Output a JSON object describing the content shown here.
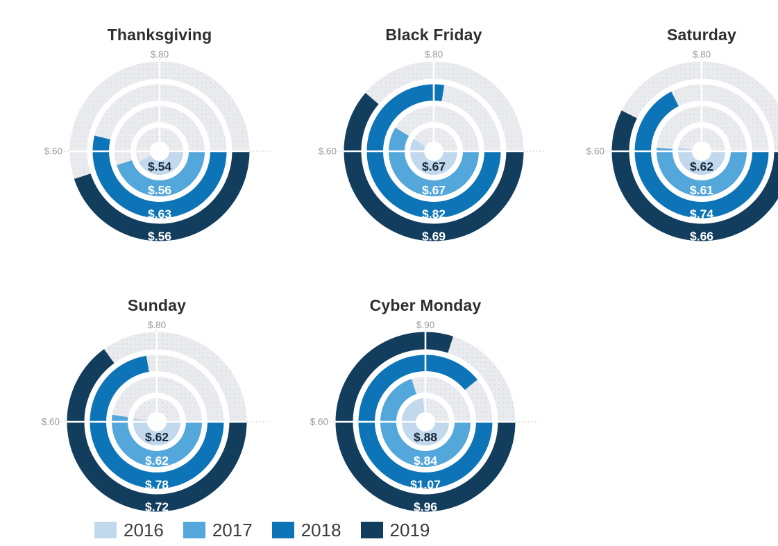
{
  "chart_data": {
    "type": "radial-bar",
    "description": "Five concentric radial bar charts comparing dollar values across 2016-2019 for each holiday shopping day",
    "series_years": [
      "2016",
      "2017",
      "2018",
      "2019"
    ],
    "series_colors": [
      "#c1d8ed",
      "#54a7da",
      "#0d75b7",
      "#123d5d"
    ],
    "track_color": "#e9ebee",
    "track_dot_color": "#d6d8dc",
    "value_text_dark": "#1a2b3a",
    "value_text_light": "#ffffff",
    "angular_scale": "arcs start at 3 o'clock and sweep clockwise; 9 o'clock = left axis label value, 12 o'clock = top axis label value, linear",
    "legend_position": "bottom-left",
    "charts": [
      {
        "title": "Thanksgiving",
        "axis_top_label": "$.80",
        "axis_left_label": "$.60",
        "axis_top_value": 0.8,
        "axis_left_value": 0.6,
        "values": [
          0.54,
          0.56,
          0.63,
          0.56
        ],
        "value_labels": [
          "$.54",
          "$.56",
          "$.63",
          "$.56"
        ]
      },
      {
        "title": "Black Friday",
        "axis_top_label": "$.80",
        "axis_left_label": "$.60",
        "axis_top_value": 0.8,
        "axis_left_value": 0.6,
        "values": [
          0.67,
          0.67,
          0.82,
          0.69
        ],
        "value_labels": [
          "$.67",
          "$.67",
          "$.82",
          "$.69"
        ]
      },
      {
        "title": "Saturday",
        "axis_top_label": "$.80",
        "axis_left_label": "$.60",
        "axis_top_value": 0.8,
        "axis_left_value": 0.6,
        "values": [
          0.62,
          0.61,
          0.74,
          0.66
        ],
        "value_labels": [
          "$.62",
          "$.61",
          "$.74",
          "$.66"
        ]
      },
      {
        "title": "Sunday",
        "axis_top_label": "$.80",
        "axis_left_label": "$.60",
        "axis_top_value": 0.8,
        "axis_left_value": 0.6,
        "values": [
          0.62,
          0.62,
          0.78,
          0.72
        ],
        "value_labels": [
          "$.62",
          "$.62",
          "$.78",
          "$.72"
        ]
      },
      {
        "title": "Cyber Monday",
        "axis_top_label": "$.90",
        "axis_left_label": "$.60",
        "axis_top_value": 0.9,
        "axis_left_value": 0.6,
        "values": [
          0.88,
          0.84,
          1.07,
          0.96
        ],
        "value_labels": [
          "$.88",
          "$.84",
          "$1.07",
          "$.96"
        ]
      }
    ],
    "legend": [
      {
        "label": "2016",
        "color": "#c1d8ed"
      },
      {
        "label": "2017",
        "color": "#54a7da"
      },
      {
        "label": "2018",
        "color": "#0d75b7"
      },
      {
        "label": "2019",
        "color": "#123d5d"
      }
    ]
  }
}
